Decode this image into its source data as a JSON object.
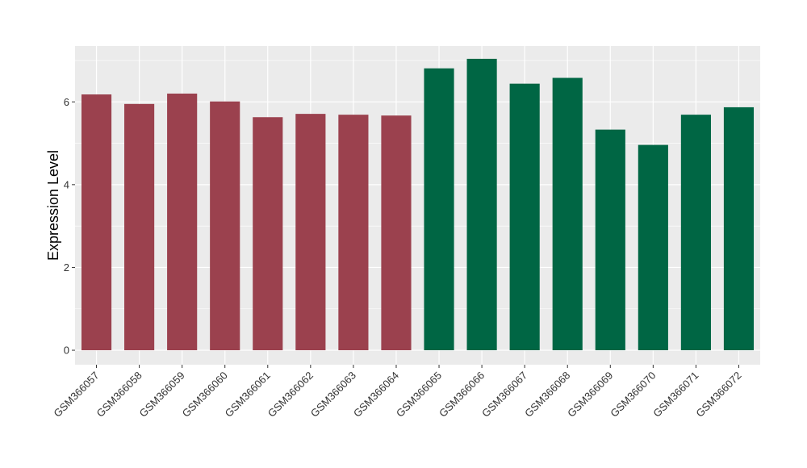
{
  "chart_data": {
    "type": "bar",
    "title": "",
    "xlabel": "",
    "ylabel": "Expression Level",
    "ylim": [
      -0.35,
      7.35
    ],
    "yticks": [
      0,
      2,
      4,
      6
    ],
    "grid": true,
    "categories": [
      "GSM366057",
      "GSM366058",
      "GSM366059",
      "GSM366060",
      "GSM366061",
      "GSM366062",
      "GSM366063",
      "GSM366064",
      "GSM366065",
      "GSM366066",
      "GSM366067",
      "GSM366068",
      "GSM366069",
      "GSM366070",
      "GSM366071",
      "GSM366072"
    ],
    "values": [
      6.18,
      5.95,
      6.2,
      6.01,
      5.63,
      5.71,
      5.69,
      5.67,
      6.81,
      7.04,
      6.44,
      6.58,
      5.33,
      4.96,
      5.69,
      5.87
    ],
    "bar_colors": [
      "#9b414e",
      "#9b414e",
      "#9b414e",
      "#9b414e",
      "#9b414e",
      "#9b414e",
      "#9b414e",
      "#9b414e",
      "#006644",
      "#006644",
      "#006644",
      "#006644",
      "#006644",
      "#006644",
      "#006644",
      "#006644"
    ],
    "panel_background": "#ebebeb",
    "grid_color": "#ffffff"
  }
}
